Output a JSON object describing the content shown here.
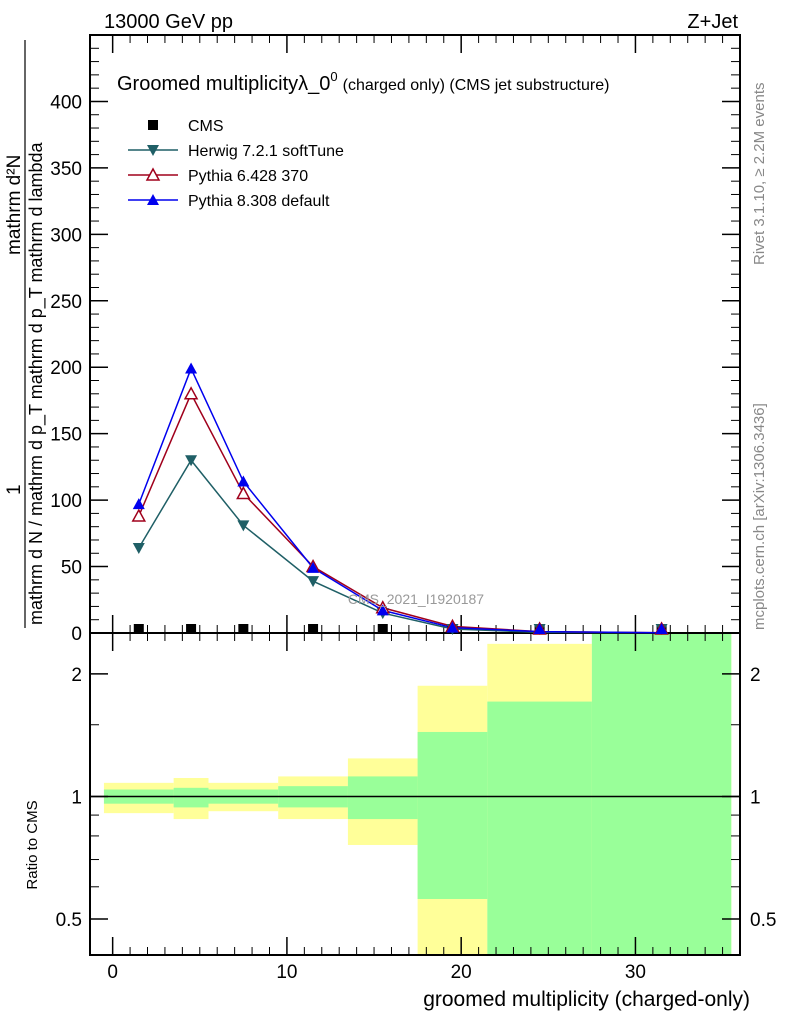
{
  "header": {
    "energy": "13000 GeV pp",
    "process": "Z+Jet"
  },
  "side": {
    "rivet": "Rivet 3.1.10, ≥ 2.2M events",
    "mcplots": "mcplots.cern.ch [arXiv:1306.3436]"
  },
  "watermark": "CMS_2021_I1920187",
  "colors": {
    "cms": "#000000",
    "herwig": "#1f5f66",
    "py6": "#a0001c",
    "py8": "#0000ee",
    "band_outer": "#ffff99",
    "band_inner": "#99ff99"
  },
  "chart_data": [
    {
      "type": "line",
      "title": "Groomed multiplicityλ_0",
      "title_sup": "0",
      "title_small": "(charged only) (CMS jet substructure)",
      "ylabel_num": "mathrm d²N",
      "ylabel_one": "1",
      "ylabel_den": "mathrm d N / mathrm d p_T mathrm d p_T mathrm d lambda",
      "xlim": [
        -1.3,
        36
      ],
      "ylim": [
        0,
        450
      ],
      "yticks": [
        0,
        50,
        100,
        150,
        200,
        250,
        300,
        350,
        400
      ],
      "x": [
        1.5,
        4.5,
        7.5,
        11.5,
        15.5,
        19.5,
        24.5,
        31.5
      ],
      "series": [
        {
          "name": "CMS",
          "key": "cms",
          "marker": "square",
          "values": [
            1,
            1,
            1,
            1,
            1,
            0.5,
            0.2,
            0.1
          ]
        },
        {
          "name": "Herwig 7.2.1 softTune",
          "key": "herwig",
          "marker": "tri-down",
          "values": [
            64,
            130,
            81,
            39,
            15,
            3,
            0.5,
            0.1
          ]
        },
        {
          "name": "Pythia 6.428 370",
          "key": "py6",
          "marker": "tri-open",
          "values": [
            88,
            180,
            105,
            50,
            19,
            5,
            1,
            0.2
          ]
        },
        {
          "name": "Pythia 8.308 default",
          "key": "py8",
          "marker": "tri-up",
          "values": [
            97,
            199,
            114,
            49,
            17,
            4,
            1,
            0.2
          ]
        }
      ],
      "legend": "top-left"
    },
    {
      "type": "area",
      "ylabel": "Ratio to CMS",
      "xlabel": "groomed multiplicity (charged-only)",
      "yscale": "log",
      "ylim": [
        0.408,
        2.52
      ],
      "yticks": [
        0.5,
        1,
        2
      ],
      "xticks": [
        0,
        10,
        20,
        30
      ],
      "bin_edges": [
        -0.5,
        3.5,
        5.5,
        9.5,
        13.5,
        17.5,
        21.5,
        27.5,
        35.5
      ],
      "outer_band": [
        [
          0.91,
          1.08
        ],
        [
          0.88,
          1.11
        ],
        [
          0.92,
          1.08
        ],
        [
          0.88,
          1.12
        ],
        [
          0.76,
          1.24
        ],
        [
          0.3,
          1.87
        ],
        [
          0.3,
          2.37
        ],
        [
          0.3,
          3.0
        ]
      ],
      "inner_band": [
        [
          0.96,
          1.04
        ],
        [
          0.94,
          1.05
        ],
        [
          0.96,
          1.04
        ],
        [
          0.94,
          1.06
        ],
        [
          0.88,
          1.12
        ],
        [
          0.56,
          1.44
        ],
        [
          0.3,
          1.71
        ],
        [
          0.3,
          3.0
        ]
      ]
    }
  ]
}
